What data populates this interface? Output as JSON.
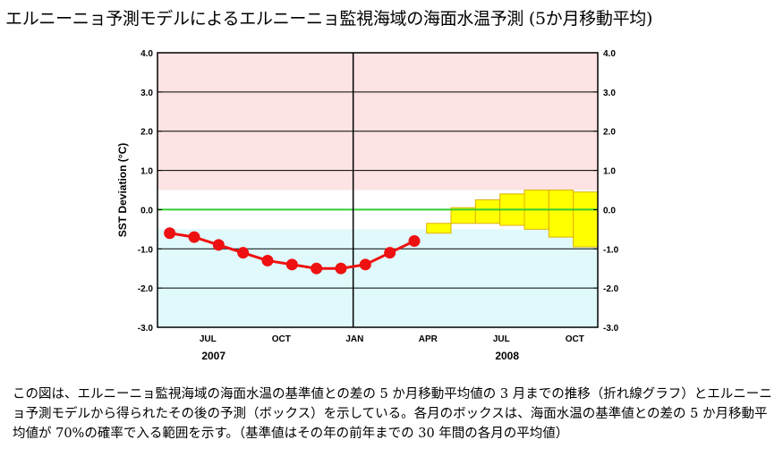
{
  "title": "エルニーニョ予測モデルによるエルニーニョ監視海域の海面水温予測 (5か月移動平均)",
  "caption": "この図は、エルニーニョ監視海域の海面水温の基準値との差の 5 か月移動平均値の 3 月までの推移（折れ線グラフ）とエルニーニョ予測モデルから得られたその後の予測（ボックス）を示している。各月のボックスは、海面水温の基準値との差の 5 か月移動平均値が 70%の確率で入る範囲を示す。（基準値はその年の前年までの 30 年間の各月の平均値）",
  "chart_data": {
    "type": "line",
    "ylabel": "SST Deviation (°C)",
    "ylim": [
      -3.0,
      4.0
    ],
    "yticks": [
      "4.0",
      "3.0",
      "2.0",
      "1.0",
      "0.0",
      "-1.0",
      "-2.0",
      "-3.0"
    ],
    "xlim": [
      0,
      18
    ],
    "month_labels": [
      {
        "pos": 2.5,
        "label": "JUL"
      },
      {
        "pos": 5.5,
        "label": "OCT"
      },
      {
        "pos": 8.5,
        "label": "JAN"
      },
      {
        "pos": 11.5,
        "label": "APR"
      },
      {
        "pos": 14.5,
        "label": "JUL"
      },
      {
        "pos": 17.5,
        "label": "OCT"
      }
    ],
    "year_labels": [
      {
        "pos": 2.0,
        "label": "2007"
      },
      {
        "pos": 14.0,
        "label": "2008"
      }
    ],
    "year_divider": 8,
    "zero_line_color": "#33cc33",
    "warm_band": {
      "from": 0.5,
      "to": 4.0,
      "color": "#fde3e3"
    },
    "cold_band": {
      "from": -3.0,
      "to": -0.5,
      "color": "#e0fafc"
    },
    "observed": {
      "color": "#ee1111",
      "x": [
        0.5,
        1.5,
        2.5,
        3.5,
        4.5,
        5.5,
        6.5,
        7.5,
        8.5,
        9.5,
        10.5
      ],
      "values": [
        -0.6,
        -0.7,
        -0.9,
        -1.1,
        -1.3,
        -1.4,
        -1.5,
        -1.5,
        -1.4,
        -1.1,
        -0.8
      ]
    },
    "forecast_boxes": {
      "color": "#ffff00",
      "border": "#e0b000",
      "x": [
        11.5,
        12.5,
        13.5,
        14.5,
        15.5,
        16.5,
        17.5
      ],
      "low": [
        -0.6,
        -0.35,
        -0.35,
        -0.4,
        -0.5,
        -0.7,
        -0.95
      ],
      "high": [
        -0.35,
        0.05,
        0.25,
        0.4,
        0.5,
        0.5,
        0.45
      ]
    }
  }
}
